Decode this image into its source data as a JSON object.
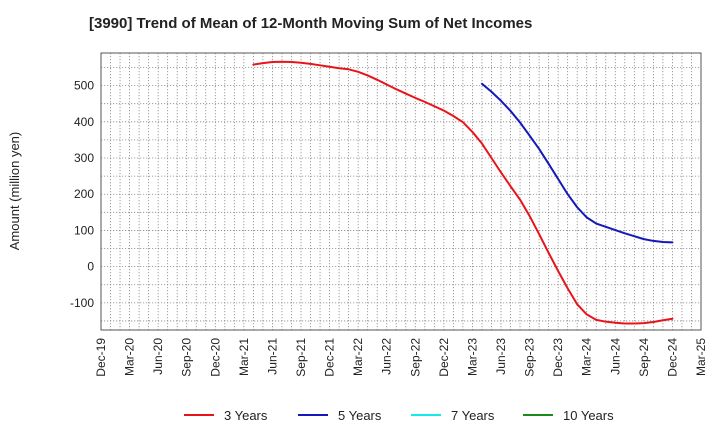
{
  "chart_data": {
    "type": "line",
    "title": "[3990]  Trend of Mean of 12-Month Moving Sum of Net Incomes",
    "ylabel": "Amount (million yen)",
    "xlabel": "",
    "ylim": [
      -175,
      590
    ],
    "y_ticks": [
      -100,
      0,
      100,
      200,
      300,
      400,
      500
    ],
    "x_tick_labels": [
      "Dec-19",
      "Mar-20",
      "Jun-20",
      "Sep-20",
      "Dec-20",
      "Mar-21",
      "Jun-21",
      "Sep-21",
      "Dec-21",
      "Mar-22",
      "Jun-22",
      "Sep-22",
      "Dec-22",
      "Mar-23",
      "Jun-23",
      "Sep-23",
      "Dec-23",
      "Mar-24",
      "Jun-24",
      "Sep-24",
      "Dec-24",
      "Mar-25"
    ],
    "grid": true,
    "legend_position": "bottom",
    "series": [
      {
        "name": "3 Years",
        "color": "#e8141b",
        "x": [
          "2021-04",
          "2021-05",
          "2021-06",
          "2021-07",
          "2021-08",
          "2021-09",
          "2021-10",
          "2021-11",
          "2021-12",
          "2022-01",
          "2022-02",
          "2022-03",
          "2022-04",
          "2022-05",
          "2022-06",
          "2022-07",
          "2022-08",
          "2022-09",
          "2022-10",
          "2022-11",
          "2022-12",
          "2023-01",
          "2023-02",
          "2023-03",
          "2023-04",
          "2023-05",
          "2023-06",
          "2023-07",
          "2023-08",
          "2023-09",
          "2023-10",
          "2023-11",
          "2023-12",
          "2024-01",
          "2024-02",
          "2024-03",
          "2024-04",
          "2024-05",
          "2024-06",
          "2024-07",
          "2024-08",
          "2024-09",
          "2024-10",
          "2024-11",
          "2024-12"
        ],
        "values": [
          558,
          562,
          565,
          566,
          565,
          563,
          560,
          556,
          552,
          548,
          545,
          538,
          528,
          516,
          503,
          490,
          478,
          466,
          455,
          443,
          431,
          416,
          399,
          372,
          340,
          300,
          260,
          222,
          185,
          140,
          90,
          38,
          -12,
          -60,
          -104,
          -132,
          -147,
          -152,
          -155,
          -157,
          -157,
          -156,
          -153,
          -148,
          -144
        ]
      },
      {
        "name": "5 Years",
        "color": "#1418b8",
        "x": [
          "2023-04",
          "2023-05",
          "2023-06",
          "2023-07",
          "2023-08",
          "2023-09",
          "2023-10",
          "2023-11",
          "2023-12",
          "2024-01",
          "2024-02",
          "2024-03",
          "2024-04",
          "2024-05",
          "2024-06",
          "2024-07",
          "2024-08",
          "2024-09",
          "2024-10",
          "2024-11",
          "2024-12"
        ],
        "values": [
          505,
          483,
          458,
          430,
          398,
          362,
          325,
          284,
          242,
          200,
          164,
          136,
          119,
          110,
          101,
          92,
          84,
          76,
          71,
          68,
          67
        ]
      },
      {
        "name": "7 Years",
        "color": "#18e8e8",
        "x": [],
        "values": []
      },
      {
        "name": "10 Years",
        "color": "#1a8a1a",
        "x": [],
        "values": []
      }
    ]
  }
}
